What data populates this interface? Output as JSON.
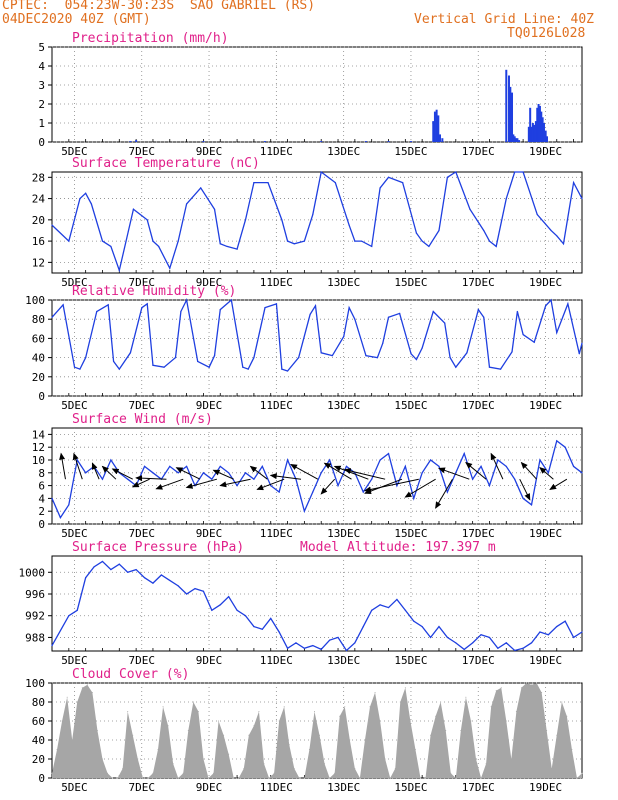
{
  "header": {
    "line1": "CPTEC:  054:23W-30:23S  SAO GABRIEL (RS)",
    "line2": "04DEC2020 40Z (GMT)",
    "grid_line": "Vertical Grid Line: 40Z",
    "code": "TQ0126L028"
  },
  "colors": {
    "header": "#e07020",
    "title": "#e0208a",
    "line": "#1f3fe0",
    "bar": "#1f3fe0",
    "cloud": "#a6a6a6"
  },
  "x_labels": [
    "5DEC",
    "7DEC",
    "9DEC",
    "11DEC",
    "13DEC",
    "15DEC",
    "17DEC",
    "19DEC"
  ],
  "chart_data": [
    {
      "id": "precip",
      "type": "bar",
      "title": "Precipitation (mm/h)",
      "ylim": [
        0,
        5
      ],
      "yticks": [
        0,
        1,
        2,
        3,
        4,
        5
      ],
      "x_unit": "days since 04DEC2020 00Z",
      "xlim": [
        0,
        15.75
      ],
      "x": [
        2.33,
        2.5,
        4.5,
        6.33,
        8.0,
        9.33,
        10.0,
        10.67,
        11.33,
        11.38,
        11.43,
        11.48,
        11.53,
        11.6,
        13.5,
        13.58,
        13.62,
        13.67,
        13.71,
        13.75,
        13.79,
        13.83,
        13.88,
        14.17,
        14.21,
        14.25,
        14.29,
        14.33,
        14.38,
        14.42,
        14.46,
        14.5,
        14.54,
        14.58,
        14.62,
        14.67,
        14.71
      ],
      "values": [
        0.05,
        0.1,
        0.05,
        0.05,
        0.05,
        0.05,
        0.05,
        0.05,
        1.1,
        1.6,
        1.7,
        1.4,
        0.4,
        0.2,
        3.8,
        3.5,
        2.9,
        2.6,
        0.4,
        0.3,
        0.2,
        0.2,
        0.1,
        0.8,
        1.8,
        0.8,
        1.0,
        0.9,
        1.1,
        1.8,
        2.0,
        1.9,
        1.6,
        1.3,
        1.0,
        0.6,
        0.3
      ]
    },
    {
      "id": "temp",
      "type": "line",
      "title": "Surface Temperature (nC)",
      "ylim": [
        10,
        29
      ],
      "yticks": [
        12,
        16,
        20,
        24,
        28
      ],
      "x_unit": "days since 04DEC2020 00Z",
      "xlim": [
        0,
        15.75
      ],
      "x": [
        0,
        0.5,
        0.83,
        1,
        1.17,
        1.5,
        1.75,
        2,
        2.42,
        2.83,
        3,
        3.17,
        3.5,
        3.75,
        4,
        4.42,
        4.83,
        5,
        5.2,
        5.5,
        5.75,
        6,
        6.42,
        6.83,
        7,
        7.2,
        7.5,
        7.75,
        8,
        8.42,
        8.83,
        9,
        9.2,
        9.5,
        9.75,
        10,
        10.42,
        10.83,
        11,
        11.2,
        11.5,
        11.75,
        12,
        12.42,
        12.83,
        13,
        13.2,
        13.5,
        13.75,
        14,
        14.42,
        14.83,
        15,
        15.2,
        15.5,
        15.75
      ],
      "values": [
        19,
        16,
        24,
        25,
        23,
        16,
        15,
        10.5,
        22,
        20,
        16,
        15,
        10.9,
        16,
        23,
        26,
        22,
        15.5,
        15,
        14.5,
        20,
        27,
        27,
        20,
        16,
        15.5,
        16,
        21,
        29,
        27,
        19,
        16,
        16,
        15,
        26,
        28,
        27,
        17.5,
        16,
        15,
        18,
        28,
        29,
        22,
        18,
        16,
        15,
        24,
        29,
        29,
        21,
        18,
        17,
        15.5,
        27,
        24
      ]
    },
    {
      "id": "rh",
      "type": "line",
      "title": "Relative Humidity (%)",
      "ylim": [
        0,
        100
      ],
      "yticks": [
        0,
        20,
        40,
        60,
        80,
        100
      ],
      "x_unit": "days since 04DEC2020 00Z",
      "xlim": [
        0,
        15.75
      ],
      "x": [
        0,
        0.33,
        0.67,
        0.83,
        1,
        1.33,
        1.67,
        1.83,
        2,
        2.33,
        2.67,
        2.83,
        3,
        3.33,
        3.67,
        3.83,
        4,
        4.33,
        4.67,
        4.83,
        5,
        5.33,
        5.67,
        5.83,
        6,
        6.33,
        6.67,
        6.83,
        7,
        7.33,
        7.67,
        7.83,
        8,
        8.33,
        8.67,
        8.83,
        9,
        9.33,
        9.67,
        9.83,
        10,
        10.33,
        10.67,
        10.83,
        11,
        11.33,
        11.67,
        11.83,
        12,
        12.33,
        12.67,
        12.83,
        13,
        13.33,
        13.67,
        13.83,
        14,
        14.33,
        14.67,
        14.83,
        15,
        15.33,
        15.67,
        15.75
      ],
      "values": [
        82,
        95,
        30,
        28,
        40,
        88,
        95,
        36,
        28,
        45,
        92,
        96,
        32,
        30,
        40,
        88,
        100,
        36,
        30,
        42,
        90,
        100,
        30,
        28,
        40,
        92,
        96,
        28,
        26,
        40,
        85,
        94,
        45,
        42,
        62,
        92,
        80,
        42,
        40,
        55,
        82,
        86,
        44,
        38,
        50,
        88,
        76,
        40,
        30,
        45,
        90,
        82,
        30,
        28,
        46,
        88,
        64,
        56,
        94,
        100,
        66,
        96,
        44,
        55
      ]
    },
    {
      "id": "wind",
      "type": "line",
      "title": "Surface Wind (m/s)",
      "ylim": [
        0,
        15
      ],
      "yticks": [
        0,
        2,
        4,
        6,
        8,
        10,
        12,
        14
      ],
      "x_unit": "days since 04DEC2020 00Z",
      "xlim": [
        0,
        15.75
      ],
      "x": [
        0,
        0.25,
        0.5,
        0.75,
        1,
        1.25,
        1.5,
        1.75,
        2,
        2.25,
        2.5,
        2.75,
        3,
        3.25,
        3.5,
        3.75,
        4,
        4.25,
        4.5,
        4.75,
        5,
        5.25,
        5.5,
        5.75,
        6,
        6.25,
        6.5,
        6.75,
        7,
        7.25,
        7.5,
        7.75,
        8,
        8.25,
        8.5,
        8.75,
        9,
        9.25,
        9.5,
        9.75,
        10,
        10.25,
        10.5,
        10.75,
        11,
        11.25,
        11.5,
        11.75,
        12,
        12.25,
        12.5,
        12.75,
        13,
        13.25,
        13.5,
        13.75,
        14,
        14.25,
        14.5,
        14.75,
        15,
        15.25,
        15.5,
        15.75
      ],
      "values": [
        4,
        1,
        3,
        10,
        8,
        9,
        7,
        10,
        8,
        7,
        6,
        9,
        8,
        7,
        9,
        8,
        9,
        6,
        8,
        7,
        9,
        8,
        6,
        8,
        7,
        9,
        6,
        5,
        10,
        7,
        2,
        5,
        8,
        10,
        6,
        9,
        8,
        5,
        7,
        10,
        11,
        6,
        9,
        4,
        8,
        10,
        9,
        5,
        8,
        11,
        7,
        9,
        6,
        10,
        9,
        7,
        4,
        3,
        10,
        8,
        13,
        12,
        9,
        8
      ],
      "arrows": [
        {
          "x": 0.4,
          "dx": -0.13,
          "dy": 4
        },
        {
          "x": 0.9,
          "dx": -0.25,
          "dy": 4
        },
        {
          "x": 1.4,
          "dx": -0.2,
          "dy": 2.5
        },
        {
          "x": 1.9,
          "dx": -0.4,
          "dy": 2
        },
        {
          "x": 2.4,
          "dx": -0.6,
          "dy": 1.6
        },
        {
          "x": 2.9,
          "dx": -0.5,
          "dy": -1.2
        },
        {
          "x": 3.4,
          "dx": -0.9,
          "dy": 0.2
        },
        {
          "x": 3.9,
          "dx": -0.8,
          "dy": -1.5
        },
        {
          "x": 4.4,
          "dx": -0.7,
          "dy": 1.8
        },
        {
          "x": 4.9,
          "dx": -0.9,
          "dy": -1.3
        },
        {
          "x": 5.4,
          "dx": -0.6,
          "dy": 1.4
        },
        {
          "x": 5.9,
          "dx": -0.9,
          "dy": -1
        },
        {
          "x": 6.4,
          "dx": -0.5,
          "dy": 2
        },
        {
          "x": 6.9,
          "dx": -0.8,
          "dy": -1.6
        },
        {
          "x": 7.4,
          "dx": -0.9,
          "dy": 0.6
        },
        {
          "x": 7.9,
          "dx": -0.8,
          "dy": 2.3
        },
        {
          "x": 8.4,
          "dx": -0.4,
          "dy": -2.3
        },
        {
          "x": 8.9,
          "dx": -0.8,
          "dy": 2.5
        },
        {
          "x": 9.4,
          "dx": -1,
          "dy": 2
        },
        {
          "x": 9.9,
          "dx": -1.2,
          "dy": 1.5
        },
        {
          "x": 10.4,
          "dx": -1.1,
          "dy": -2.2
        },
        {
          "x": 10.9,
          "dx": -1.6,
          "dy": -1.8
        },
        {
          "x": 11.4,
          "dx": -0.9,
          "dy": -2.8
        },
        {
          "x": 11.9,
          "dx": -0.5,
          "dy": -4.5
        },
        {
          "x": 12.4,
          "dx": -0.9,
          "dy": 1.7
        },
        {
          "x": 12.9,
          "dx": -0.6,
          "dy": 2.6
        },
        {
          "x": 13.4,
          "dx": -0.35,
          "dy": 4
        },
        {
          "x": 13.9,
          "dx": 0.3,
          "dy": -3.2
        },
        {
          "x": 14.4,
          "dx": -0.45,
          "dy": 2.6
        },
        {
          "x": 14.9,
          "dx": -0.4,
          "dy": 1.8
        },
        {
          "x": 15.3,
          "dx": -0.5,
          "dy": -1.6
        }
      ]
    },
    {
      "id": "pressure",
      "type": "line",
      "title": "Surface Pressure (hPa)",
      "subtitle": "Model Altitude: 197.397 m",
      "ylim": [
        985.5,
        1003
      ],
      "yticks": [
        988,
        992,
        996,
        1000
      ],
      "x_unit": "days since 04DEC2020 00Z",
      "xlim": [
        0,
        15.75
      ],
      "x": [
        0,
        0.5,
        0.75,
        1,
        1.25,
        1.5,
        1.75,
        2,
        2.25,
        2.5,
        2.75,
        3,
        3.25,
        3.5,
        3.75,
        4,
        4.25,
        4.5,
        4.75,
        5,
        5.25,
        5.5,
        5.75,
        6,
        6.25,
        6.5,
        6.75,
        7,
        7.25,
        7.5,
        7.75,
        8,
        8.25,
        8.5,
        8.75,
        9,
        9.25,
        9.5,
        9.75,
        10,
        10.25,
        10.5,
        10.75,
        11,
        11.25,
        11.5,
        11.75,
        12,
        12.25,
        12.5,
        12.75,
        13,
        13.25,
        13.5,
        13.75,
        14,
        14.25,
        14.5,
        14.75,
        15,
        15.25,
        15.5,
        15.75
      ],
      "values": [
        986.5,
        992,
        993,
        999,
        1001,
        1002,
        1000.5,
        1001.5,
        1000,
        1000.5,
        999,
        998,
        999.5,
        998.5,
        997.5,
        996,
        997,
        996.5,
        993,
        994,
        995.5,
        993,
        992,
        990,
        989.5,
        991.5,
        989,
        986,
        987,
        986,
        986.5,
        985.8,
        987.5,
        988,
        985.6,
        987,
        990,
        993,
        994,
        993.5,
        995,
        993,
        991,
        990,
        988,
        990,
        988,
        987,
        985.8,
        987,
        988.5,
        988,
        986,
        987,
        985.6,
        986,
        987,
        989,
        988.5,
        990,
        991,
        988,
        989
      ]
    },
    {
      "id": "cloud",
      "type": "area",
      "title": "Cloud Cover (%)",
      "ylim": [
        0,
        100
      ],
      "yticks": [
        0,
        20,
        40,
        60,
        80,
        100
      ],
      "x_unit": "days since 04DEC2020 00Z",
      "xlim": [
        0,
        15.75
      ],
      "x": [
        0,
        0.15,
        0.3,
        0.45,
        0.6,
        0.75,
        0.9,
        1.05,
        1.2,
        1.35,
        1.5,
        1.65,
        1.8,
        1.95,
        2.1,
        2.25,
        2.4,
        2.55,
        2.7,
        2.85,
        3,
        3.15,
        3.3,
        3.45,
        3.6,
        3.75,
        3.9,
        4.05,
        4.2,
        4.35,
        4.5,
        4.65,
        4.8,
        4.95,
        5.1,
        5.25,
        5.4,
        5.55,
        5.7,
        5.85,
        6,
        6.15,
        6.3,
        6.45,
        6.6,
        6.75,
        6.9,
        7.05,
        7.2,
        7.35,
        7.5,
        7.65,
        7.8,
        7.95,
        8.1,
        8.25,
        8.4,
        8.55,
        8.7,
        8.85,
        9,
        9.15,
        9.3,
        9.45,
        9.6,
        9.75,
        9.9,
        10.05,
        10.2,
        10.35,
        10.5,
        10.65,
        10.8,
        10.95,
        11.1,
        11.25,
        11.4,
        11.55,
        11.7,
        11.85,
        12,
        12.15,
        12.3,
        12.45,
        12.6,
        12.75,
        12.9,
        13.05,
        13.2,
        13.35,
        13.5,
        13.65,
        13.8,
        13.95,
        14.1,
        14.25,
        14.4,
        14.55,
        14.7,
        14.85,
        15,
        15.15,
        15.3,
        15.45,
        15.6,
        15.75
      ],
      "values": [
        5,
        30,
        60,
        85,
        40,
        80,
        95,
        98,
        90,
        50,
        20,
        5,
        0,
        0,
        10,
        70,
        45,
        20,
        0,
        0,
        5,
        30,
        75,
        55,
        15,
        0,
        5,
        50,
        80,
        70,
        20,
        0,
        5,
        60,
        45,
        25,
        0,
        0,
        10,
        45,
        55,
        70,
        15,
        0,
        5,
        60,
        75,
        35,
        10,
        0,
        0,
        30,
        70,
        45,
        15,
        0,
        5,
        65,
        75,
        40,
        10,
        0,
        40,
        75,
        90,
        60,
        20,
        0,
        10,
        80,
        95,
        60,
        30,
        0,
        0,
        45,
        65,
        80,
        50,
        5,
        0,
        50,
        85,
        60,
        20,
        0,
        15,
        75,
        92,
        95,
        60,
        20,
        70,
        95,
        100,
        98,
        100,
        90,
        50,
        10,
        45,
        80,
        65,
        30,
        0,
        5
      ]
    }
  ]
}
